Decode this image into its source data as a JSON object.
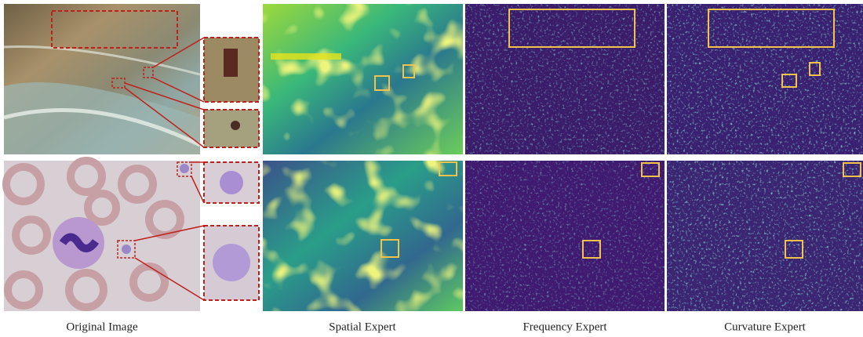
{
  "captions": [
    "Original Image",
    "Spatial Expert",
    "Frequency Expert",
    "Curvature Expert"
  ]
}
